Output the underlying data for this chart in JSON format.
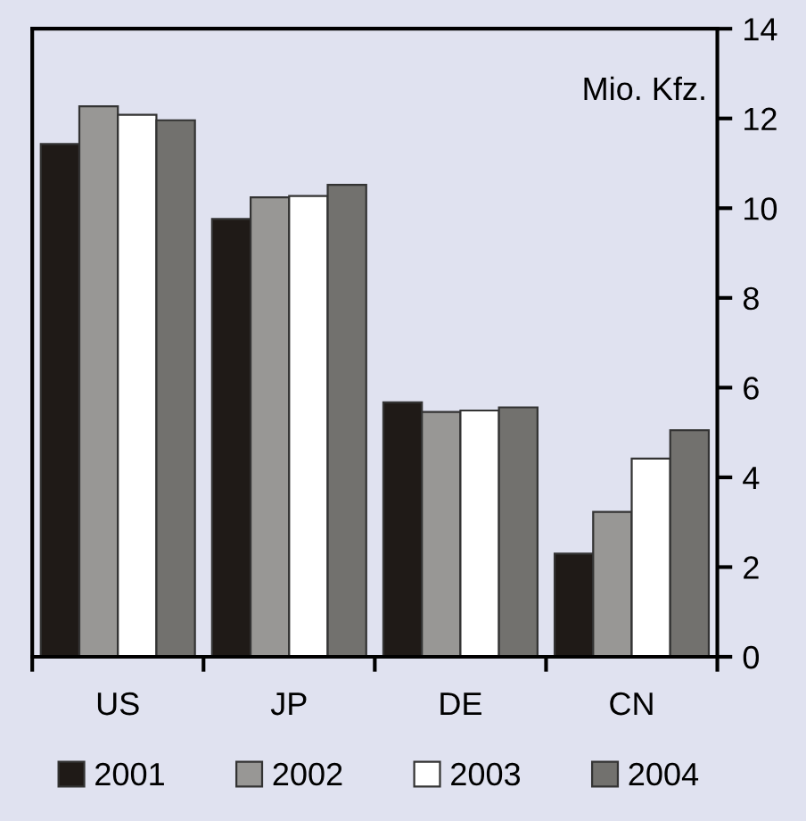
{
  "chart_data": {
    "type": "bar",
    "categories": [
      "US",
      "JP",
      "DE",
      "CN"
    ],
    "series": [
      {
        "name": "2001",
        "color": "#1f1a17",
        "values": [
          11.43,
          9.76,
          5.67,
          2.3
        ]
      },
      {
        "name": "2002",
        "color": "#989795",
        "values": [
          12.27,
          10.24,
          5.46,
          3.23
        ]
      },
      {
        "name": "2003",
        "color": "#ffffff",
        "values": [
          12.08,
          10.27,
          5.49,
          4.42
        ]
      },
      {
        "name": "2004",
        "color": "#72716e",
        "values": [
          11.96,
          10.52,
          5.56,
          5.05
        ]
      }
    ],
    "annotations": [
      "Mio. Kfz."
    ],
    "ylim": [
      0,
      14
    ],
    "yticks": [
      0,
      2,
      4,
      6,
      8,
      10,
      12,
      14
    ],
    "grid": false,
    "legend": "bottom"
  }
}
